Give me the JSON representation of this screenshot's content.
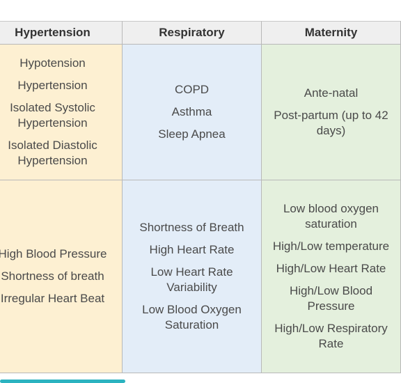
{
  "table": {
    "header": [
      "Hypertension",
      "Respiratory",
      "Maternity"
    ],
    "rows": [
      [
        [
          "Hypotension",
          "Hypertension",
          "Isolated Systolic Hypertension",
          "Isolated Diastolic Hypertension"
        ],
        [
          "COPD",
          "Asthma",
          "Sleep Apnea"
        ],
        [
          "Ante-natal",
          "Post-partum (up to 42 days)"
        ]
      ],
      [
        [
          "High Blood Pressure",
          "Shortness of breath",
          "Irregular Heart Beat"
        ],
        [
          "Shortness of Breath",
          "High Heart Rate",
          "Low Heart Rate Variability",
          "Low Blood Oxygen Saturation"
        ],
        [
          "Low blood oxygen saturation",
          "High/Low temperature",
          "High/Low Heart Rate",
          "High/Low Blood Pressure",
          "High/Low Respiratory Rate"
        ]
      ]
    ]
  }
}
